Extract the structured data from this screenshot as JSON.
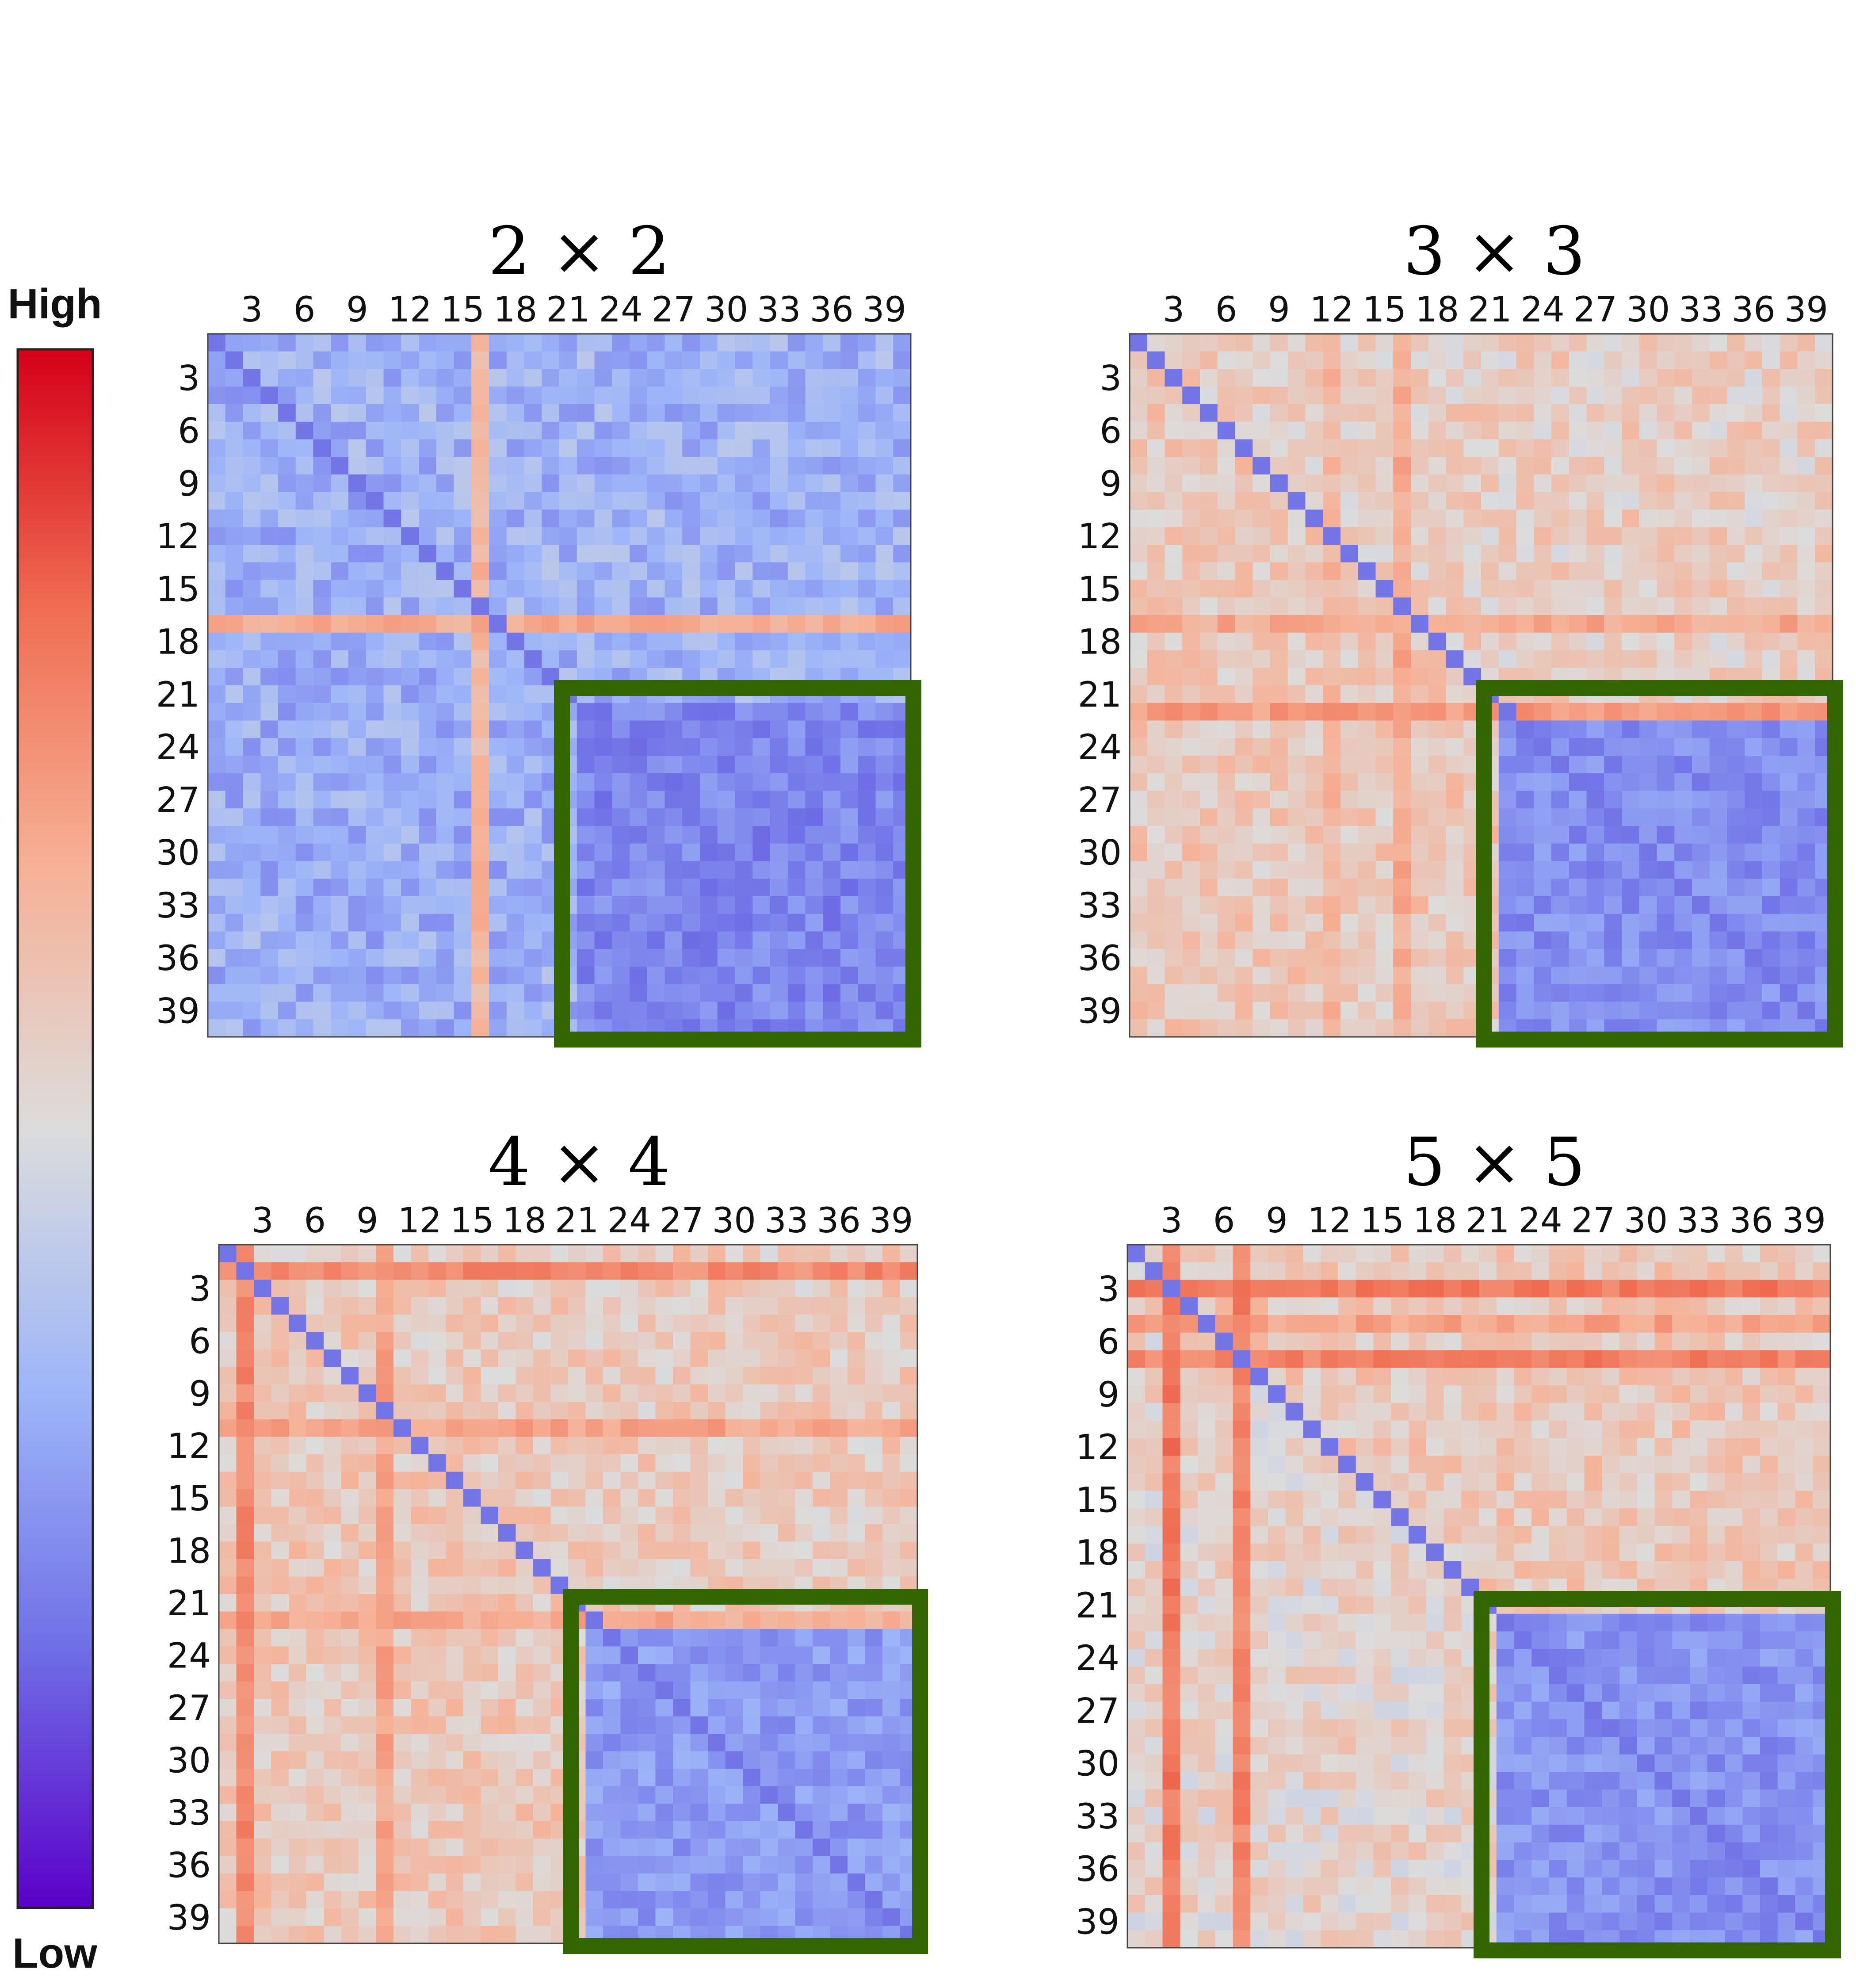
{
  "colorbar": {
    "high_label": "High",
    "low_label": "Low",
    "colormap": "coolwarm",
    "stops": [
      "#5a00c8",
      "#6f6fe6",
      "#9eb6f8",
      "#dcdcdc",
      "#f6b196",
      "#ef6d52",
      "#d40018"
    ]
  },
  "chart_data": [
    {
      "type": "heatmap",
      "title": "2 × 2",
      "size": 40,
      "tick_labels": [
        "3",
        "6",
        "9",
        "12",
        "15",
        "18",
        "21",
        "24",
        "27",
        "30",
        "33",
        "36",
        "39"
      ],
      "tick_indices": [
        3,
        6,
        9,
        12,
        15,
        18,
        21,
        24,
        27,
        30,
        33,
        36,
        39
      ],
      "diagonal_value": 0.0,
      "highlight_box": {
        "start": 21,
        "end": 39,
        "color": "#336600"
      },
      "base_upper": 0.33,
      "base_lower": 0.32,
      "box_value": 0.22,
      "hot_rows": [
        {
          "index": 16,
          "value": 0.68
        }
      ],
      "hot_cols": [
        {
          "index": 15,
          "value": 0.64
        }
      ],
      "seed": 11
    },
    {
      "type": "heatmap",
      "title": "3 × 3",
      "size": 40,
      "tick_labels": [
        "3",
        "6",
        "9",
        "12",
        "15",
        "18",
        "21",
        "24",
        "27",
        "30",
        "33",
        "36",
        "39"
      ],
      "tick_indices": [
        3,
        6,
        9,
        12,
        15,
        18,
        21,
        24,
        27,
        30,
        33,
        36,
        39
      ],
      "diagonal_value": 0.0,
      "highlight_box": {
        "start": 21,
        "end": 39,
        "color": "#336600"
      },
      "base_upper": 0.56,
      "base_lower": 0.58,
      "box_value": 0.24,
      "hot_rows": [
        {
          "index": 21,
          "value": 0.72
        },
        {
          "index": 16,
          "value": 0.68
        }
      ],
      "hot_cols": [
        {
          "index": 15,
          "value": 0.68
        },
        {
          "index": 11,
          "value": 0.64
        }
      ],
      "seed": 23
    },
    {
      "type": "heatmap",
      "title": "4 × 4",
      "size": 40,
      "tick_labels": [
        "3",
        "6",
        "9",
        "12",
        "15",
        "18",
        "21",
        "24",
        "27",
        "30",
        "33",
        "36",
        "39"
      ],
      "tick_indices": [
        3,
        6,
        9,
        12,
        15,
        18,
        21,
        24,
        27,
        30,
        33,
        36,
        39
      ],
      "diagonal_value": 0.0,
      "highlight_box": {
        "start": 21,
        "end": 39,
        "color": "#336600"
      },
      "base_upper": 0.57,
      "base_lower": 0.58,
      "box_value": 0.27,
      "hot_rows": [
        {
          "index": 1,
          "value": 0.76
        },
        {
          "index": 10,
          "value": 0.7
        },
        {
          "index": 21,
          "value": 0.68
        }
      ],
      "hot_cols": [
        {
          "index": 1,
          "value": 0.76
        },
        {
          "index": 9,
          "value": 0.7
        }
      ],
      "seed": 37
    },
    {
      "type": "heatmap",
      "title": "5 × 5",
      "size": 40,
      "tick_labels": [
        "3",
        "6",
        "9",
        "12",
        "15",
        "18",
        "21",
        "24",
        "27",
        "30",
        "33",
        "36",
        "39"
      ],
      "tick_indices": [
        3,
        6,
        9,
        12,
        15,
        18,
        21,
        24,
        27,
        30,
        33,
        36,
        39
      ],
      "diagonal_value": 0.0,
      "highlight_box": {
        "start": 21,
        "end": 39,
        "color": "#336600"
      },
      "base_upper": 0.58,
      "base_lower": 0.54,
      "box_value": 0.25,
      "hot_rows": [
        {
          "index": 2,
          "value": 0.8
        },
        {
          "index": 6,
          "value": 0.78
        },
        {
          "index": 4,
          "value": 0.7
        }
      ],
      "hot_cols": [
        {
          "index": 2,
          "value": 0.8
        },
        {
          "index": 6,
          "value": 0.78
        }
      ],
      "seed": 53
    }
  ]
}
